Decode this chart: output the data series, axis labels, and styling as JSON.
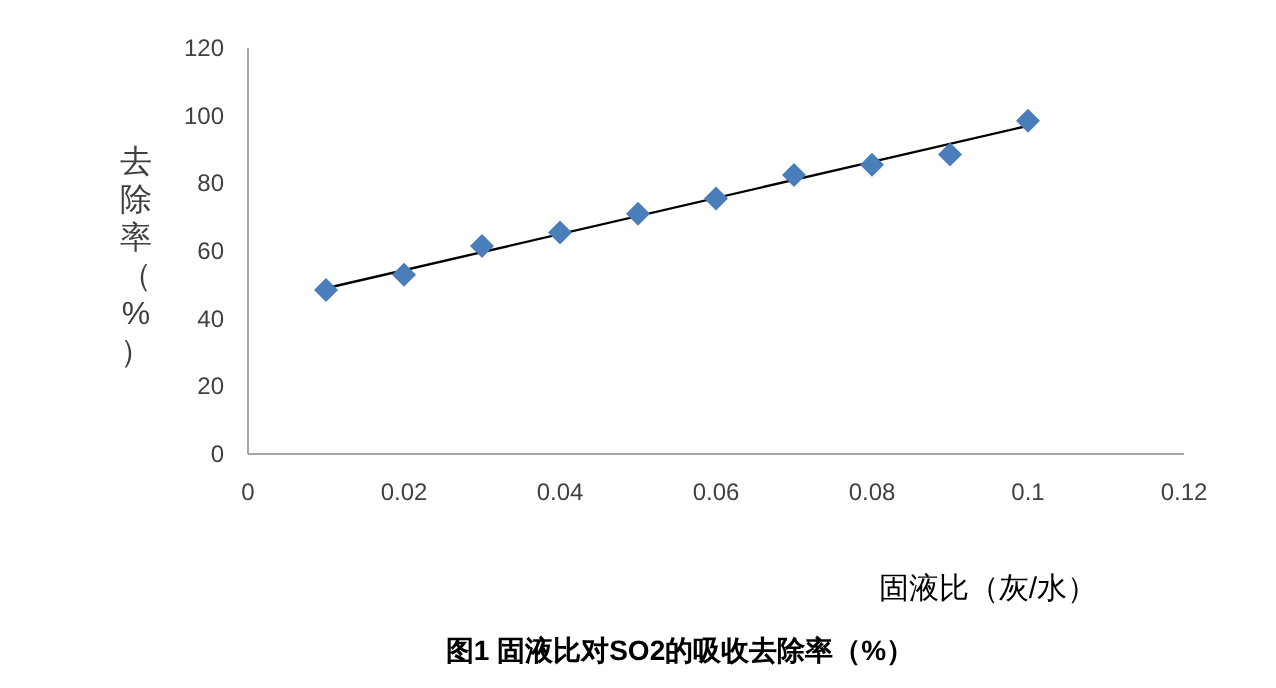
{
  "chart_data": {
    "type": "scatter",
    "title": "图1 固液比对SO2的吸收去除率（%）",
    "xlabel": "固液比（灰/水）",
    "ylabel": "去除率（%）",
    "xlim": [
      0,
      0.12
    ],
    "ylim": [
      0,
      120
    ],
    "xticks": [
      0,
      0.02,
      0.04,
      0.06,
      0.08,
      0.1,
      0.12
    ],
    "yticks": [
      0,
      20,
      40,
      60,
      80,
      100,
      120
    ],
    "series": [
      {
        "type": "line",
        "color": "#000000",
        "marker": "none",
        "x": [
          0.01,
          0.1
        ],
        "values": [
          49,
          97
        ]
      },
      {
        "type": "scatter",
        "color": "#4a7ebb",
        "marker": "diamond",
        "x": [
          0.01,
          0.02,
          0.03,
          0.04,
          0.05,
          0.06,
          0.07,
          0.08,
          0.09,
          0.1
        ],
        "values": [
          48.5,
          53,
          61.5,
          65.5,
          71,
          75.5,
          82.5,
          85.5,
          88.5,
          98.5
        ]
      }
    ]
  }
}
